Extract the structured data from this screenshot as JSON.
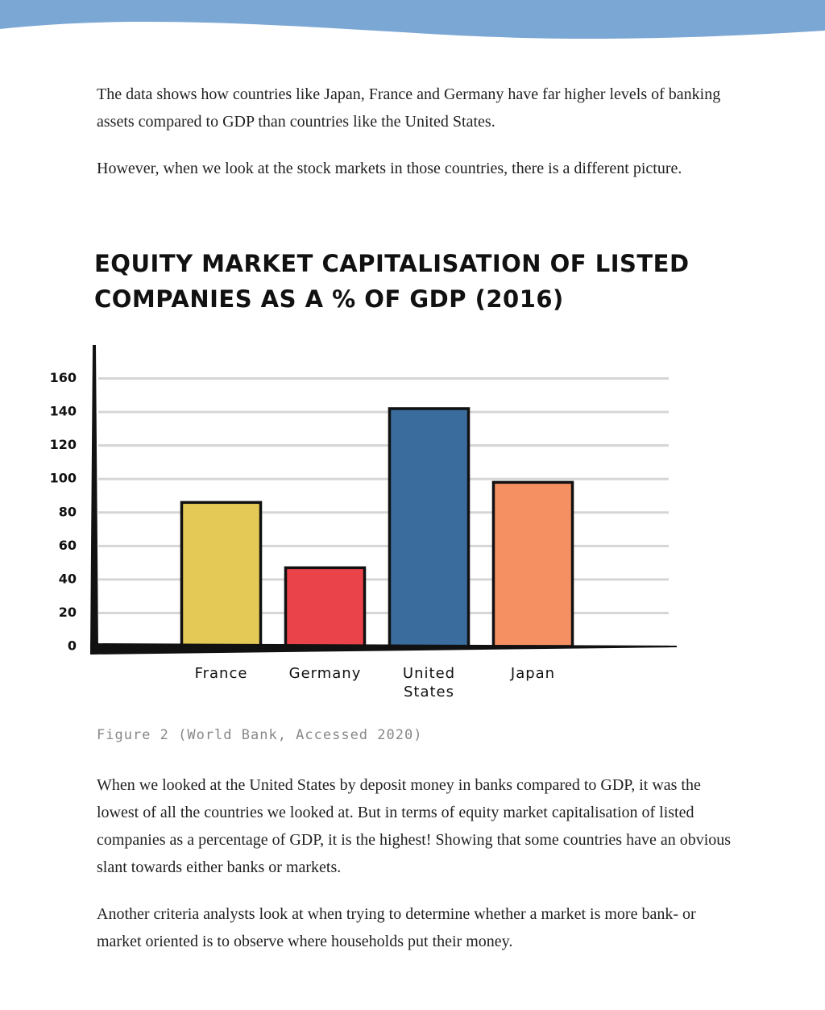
{
  "paragraphs": [
    "The data shows how countries like Japan, France and Germany have far higher levels of banking assets compared to GDP than countries like the United States.",
    "However, when we look at the stock markets in those countries, there is a different picture."
  ],
  "chart_data": {
    "type": "bar",
    "title": "EQUITY MARKET CAPITALISATION OF LISTED COMPANIES AS A % OF GDP (2016)",
    "categories": [
      "France",
      "Germany",
      "United States",
      "Japan"
    ],
    "values": [
      86,
      47,
      142,
      98
    ],
    "colors": [
      "#e5c957",
      "#ea434a",
      "#3a6d9e",
      "#f59063"
    ],
    "ylim": [
      0,
      180
    ],
    "yticks": [
      0,
      20,
      40,
      60,
      80,
      100,
      120,
      140,
      160
    ],
    "grid": true
  },
  "caption": "Figure 2 (World Bank, Accessed 2020)",
  "paragraphs_after": [
    "When we looked at the United States by deposit money in banks compared to GDP, it was the lowest of all the countries we looked at. But in terms of equity market capitalisation of listed companies as a percentage of GDP, it is the highest! Showing that some countries have an obvious slant towards either banks or markets.",
    "Another criteria analysts look at when trying to determine whether a market is more bank- or market oriented is to observe where households put their money."
  ]
}
